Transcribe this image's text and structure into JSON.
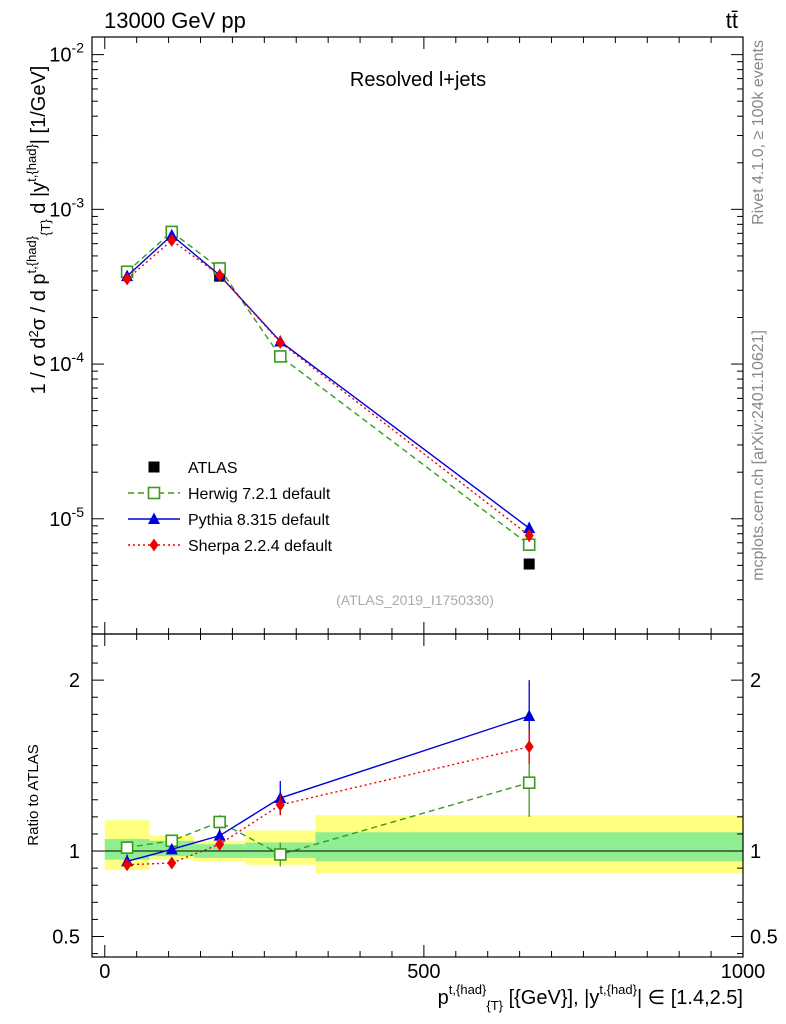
{
  "header": {
    "energy_label": "13000 GeV pp",
    "process_label": "tt̄"
  },
  "side_labels": {
    "rivet": "Rivet 4.1.0, ≥ 100k events",
    "mcplots": "mcplots.cern.ch [arXiv:2401.10621]"
  },
  "chart_data": [
    {
      "type": "line",
      "panel": "main",
      "title": "Resolved l+jets",
      "analysis_tag": "(ATLAS_2019_I1750330)",
      "yscale": "log",
      "ylabel": "1 / σ d²σ / d p^{t,{had}}_{T} d |y^{t,{had}}| [1/GeV]",
      "xlim": [
        -20,
        1000
      ],
      "ylim": [
        1.8e-06,
        0.013
      ],
      "ytick_labels": [
        {
          "base": "10",
          "exp": "-5",
          "value": 1e-05
        },
        {
          "base": "10",
          "exp": "-4",
          "value": 0.0001
        },
        {
          "base": "10",
          "exp": "-3",
          "value": 0.001
        },
        {
          "base": "10",
          "exp": "-2",
          "value": 0.01
        }
      ],
      "legend_position": "bottom-left",
      "series": [
        {
          "name": "ATLAS",
          "color": "#000000",
          "marker": "square-filled",
          "line": "none",
          "x": [
            35,
            105,
            180,
            275,
            665
          ],
          "y": [
            0.00039,
            0.00068,
            0.00037,
            0.000112,
            5.1e-06
          ],
          "err": [
            0,
            0,
            0,
            0,
            0
          ]
        },
        {
          "name": "Herwig 7.2.1 default",
          "color": "#3a9a1e",
          "marker": "square-open",
          "line": "dashed",
          "x": [
            35,
            105,
            180,
            275,
            665
          ],
          "y": [
            0.000395,
            0.000715,
            0.000415,
            0.000112,
            6.8e-06
          ],
          "err": [
            8e-06,
            1.2e-05,
            1e-05,
            4e-06,
            6e-07
          ]
        },
        {
          "name": "Pythia 8.315 default",
          "color": "#0000dd",
          "marker": "triangle",
          "line": "solid",
          "x": [
            35,
            105,
            180,
            275,
            665
          ],
          "y": [
            0.00037,
            0.00068,
            0.000375,
            0.00014,
            8.7e-06
          ],
          "err": [
            8e-06,
            1.2e-05,
            8e-06,
            5e-06,
            8e-07
          ]
        },
        {
          "name": "Sherpa 2.2.4 default",
          "color": "#ee0000",
          "marker": "diamond",
          "line": "dotted",
          "x": [
            35,
            105,
            180,
            275,
            665
          ],
          "y": [
            0.000355,
            0.00063,
            0.000375,
            0.000138,
            7.8e-06
          ],
          "err": [
            8e-06,
            1.2e-05,
            8e-06,
            5e-06,
            7e-07
          ]
        }
      ]
    },
    {
      "type": "line",
      "panel": "ratio",
      "ylabel": "Ratio to ATLAS",
      "xlabel": "p^{t,{had}}_{T} [{GeV}], |y^{t,{had}}| ∈ [1.4,2.5]",
      "xlim": [
        -20,
        1000
      ],
      "ylim": [
        0.38,
        2.27
      ],
      "xtick_labels": [
        "0",
        "500",
        "1000"
      ],
      "xtick_values": [
        0,
        500,
        1000
      ],
      "ytick_labels": [
        "0.5",
        "1",
        "2"
      ],
      "ytick_values": [
        0.5,
        1,
        2
      ],
      "bands": {
        "inner_color": "#90ee90",
        "outer_color": "#ffff80",
        "bins": [
          {
            "lo": 0,
            "hi": 70,
            "inner": [
              0.95,
              1.07
            ],
            "outer": [
              0.89,
              1.18
            ]
          },
          {
            "lo": 70,
            "hi": 140,
            "inner": [
              0.97,
              1.06
            ],
            "outer": [
              0.95,
              1.09
            ]
          },
          {
            "lo": 140,
            "hi": 220,
            "inner": [
              0.96,
              1.04
            ],
            "outer": [
              0.94,
              1.06
            ]
          },
          {
            "lo": 220,
            "hi": 330,
            "inner": [
              0.96,
              1.05
            ],
            "outer": [
              0.92,
              1.12
            ]
          },
          {
            "lo": 330,
            "hi": 1000,
            "inner": [
              0.94,
              1.11
            ],
            "outer": [
              0.87,
              1.21
            ]
          }
        ]
      },
      "series": [
        {
          "name": "Herwig 7.2.1 default",
          "color": "#3a9a1e",
          "marker": "square-open",
          "line": "dashed",
          "x": [
            35,
            105,
            180,
            275,
            665
          ],
          "y": [
            1.02,
            1.06,
            1.17,
            0.98,
            1.4
          ],
          "err": [
            0.03,
            0.03,
            0.04,
            0.07,
            0.2
          ]
        },
        {
          "name": "Pythia 8.315 default",
          "color": "#0000dd",
          "marker": "triangle",
          "line": "solid",
          "x": [
            35,
            105,
            180,
            275,
            665
          ],
          "y": [
            0.94,
            1.01,
            1.09,
            1.31,
            1.79
          ],
          "err": [
            0.04,
            0.03,
            0.04,
            0.1,
            0.21
          ]
        },
        {
          "name": "Sherpa 2.2.4 default",
          "color": "#ee0000",
          "marker": "diamond",
          "line": "dotted",
          "x": [
            35,
            105,
            180,
            275,
            665
          ],
          "y": [
            0.92,
            0.93,
            1.04,
            1.27,
            1.61
          ],
          "err": [
            0.03,
            0.02,
            0.03,
            0.06,
            0.1
          ]
        }
      ]
    }
  ]
}
